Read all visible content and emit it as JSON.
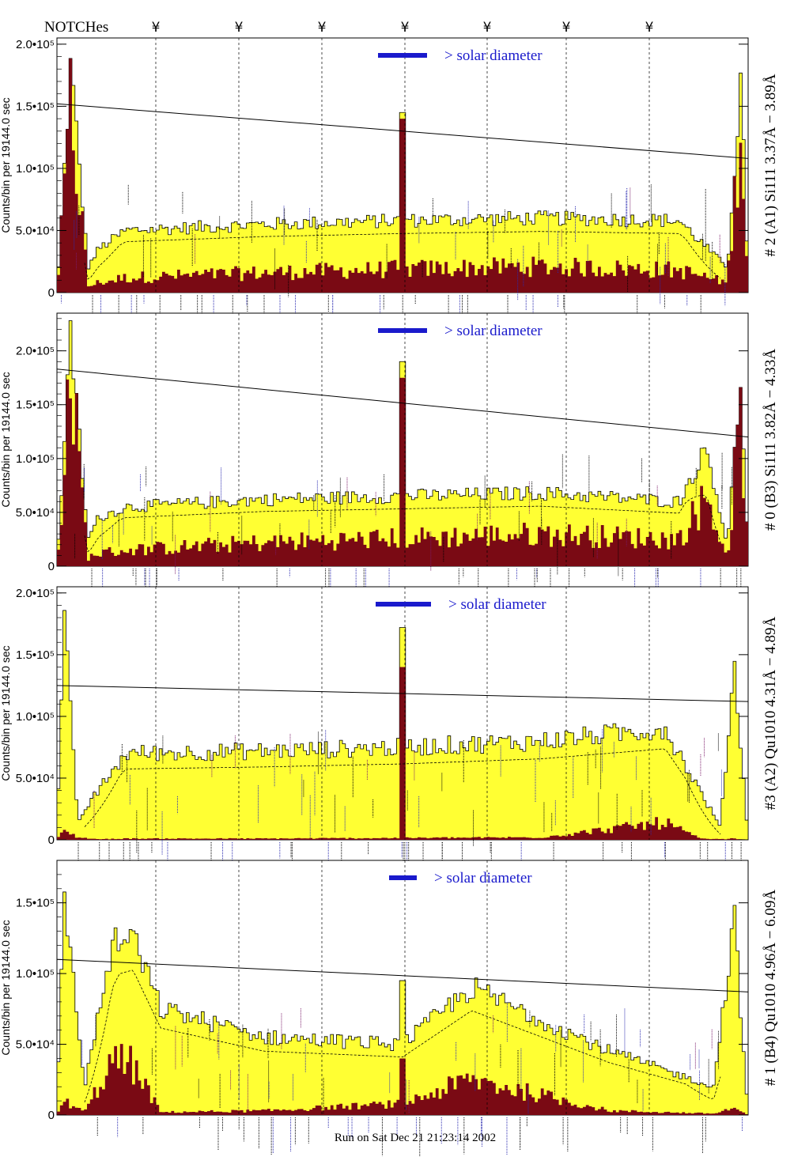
{
  "header": {
    "notch_label": "NOTCHes",
    "notch_symbol": "¥",
    "notch_positions": [
      0.13,
      0.27,
      0.41,
      0.555,
      0.695,
      0.835,
      0.975
    ]
  },
  "footer": {
    "run_text": "Run on Sat Dec 21 21:23:14 2002"
  },
  "colors": {
    "total_fill": "#ffff33",
    "component_fill": "#7a0a14",
    "legend_bar": "#1a1acc",
    "outline": "#000000"
  },
  "y_axis_title": "Counts/bin per  19144.0 sec",
  "chart_data": [
    {
      "type": "area",
      "title": "# 2 (A1) Si111  3.37Å − 3.89Å",
      "legend": "> solar diameter",
      "ylabel": "Counts/bin per  19144.0 sec",
      "ylim": [
        0,
        205000
      ],
      "yticks": [
        {
          "v": 0,
          "label": "0"
        },
        {
          "v": 50000,
          "label": "5.0•10⁴"
        },
        {
          "v": 100000,
          "label": "1.0•10⁵"
        },
        {
          "v": 150000,
          "label": "1.5•10⁵"
        },
        {
          "v": 200000,
          "label": "2.0•10⁵"
        }
      ],
      "x": [
        0,
        0.02,
        0.045,
        0.06,
        0.1,
        0.3,
        0.5,
        0.7,
        0.9,
        0.97,
        0.99,
        1
      ],
      "total": [
        0,
        185000,
        20000,
        35000,
        50000,
        55000,
        58000,
        60000,
        58000,
        20000,
        175000,
        0
      ],
      "component": [
        0,
        155000,
        5000,
        8000,
        12000,
        16000,
        19000,
        21000,
        18000,
        8000,
        150000,
        0
      ],
      "background_line": [
        152000,
        108000
      ],
      "spikes": [
        {
          "x": 0.5,
          "total": 145000,
          "component": 140000
        }
      ]
    },
    {
      "type": "area",
      "title": "# 0 (B3) Si111  3.82Å − 4.33Å",
      "legend": "> solar diameter",
      "ylabel": "Counts/bin per  19144.0 sec",
      "ylim": [
        0,
        235000
      ],
      "yticks": [
        {
          "v": 0,
          "label": "0"
        },
        {
          "v": 50000,
          "label": "5.0•10⁴"
        },
        {
          "v": 100000,
          "label": "1.0•10⁵"
        },
        {
          "v": 150000,
          "label": "1.5•10⁵"
        },
        {
          "v": 200000,
          "label": "2.0•10⁵"
        }
      ],
      "x": [
        0,
        0.02,
        0.045,
        0.06,
        0.1,
        0.3,
        0.5,
        0.7,
        0.9,
        0.94,
        0.97,
        0.99,
        1
      ],
      "total": [
        0,
        215000,
        25000,
        45000,
        55000,
        62000,
        65000,
        68000,
        60000,
        110000,
        20000,
        180000,
        0
      ],
      "component": [
        0,
        185000,
        8000,
        12000,
        15000,
        22000,
        26000,
        30000,
        25000,
        65000,
        8000,
        155000,
        0
      ],
      "background_line": [
        183000,
        120000
      ],
      "spikes": [
        {
          "x": 0.5,
          "total": 190000,
          "component": 175000
        }
      ]
    },
    {
      "type": "area",
      "title": "#3 (A2) Qu1010  4.31Å − 4.89Å",
      "legend": "> solar diameter",
      "ylabel": "Counts/bin per  19144.0 sec",
      "ylim": [
        0,
        205000
      ],
      "yticks": [
        {
          "v": 0,
          "label": "0"
        },
        {
          "v": 50000,
          "label": "5.0•10⁴"
        },
        {
          "v": 100000,
          "label": "1.0•10⁵"
        },
        {
          "v": 150000,
          "label": "1.5•10⁵"
        },
        {
          "v": 200000,
          "label": "2.0•10⁵"
        }
      ],
      "x": [
        0,
        0.01,
        0.03,
        0.06,
        0.1,
        0.3,
        0.5,
        0.7,
        0.88,
        0.93,
        0.96,
        0.98,
        1
      ],
      "total": [
        0,
        185000,
        15000,
        40000,
        70000,
        72000,
        75000,
        80000,
        90000,
        40000,
        10000,
        145000,
        0
      ],
      "component": [
        0,
        8000,
        2000,
        500,
        1000,
        1000,
        1500,
        2000,
        14000,
        1000,
        500,
        1000,
        0
      ],
      "background_line": [
        125000,
        112000
      ],
      "spikes": [
        {
          "x": 0.5,
          "total": 172000,
          "component": 140000
        }
      ]
    },
    {
      "type": "area",
      "title": "# 1 (B4) Qu1010 4.96Å − 6.09Å",
      "legend": "> solar diameter",
      "ylabel": "Counts/bin per  19144.0 sec",
      "ylim": [
        0,
        180000
      ],
      "yticks": [
        {
          "v": 0,
          "label": "0"
        },
        {
          "v": 50000,
          "label": "5.0•10⁴"
        },
        {
          "v": 100000,
          "label": "1.0•10⁵"
        },
        {
          "v": 150000,
          "label": "1.5•10⁵"
        }
      ],
      "x": [
        0,
        0.01,
        0.04,
        0.08,
        0.11,
        0.15,
        0.3,
        0.5,
        0.6,
        0.8,
        0.95,
        0.98,
        1
      ],
      "total": [
        0,
        160000,
        20000,
        120000,
        125000,
        75000,
        55000,
        50000,
        90000,
        45000,
        20000,
        140000,
        0
      ],
      "component": [
        0,
        10000,
        2000,
        38000,
        35000,
        2000,
        3000,
        8000,
        25000,
        3000,
        1000,
        5000,
        0
      ],
      "background_line": [
        110000,
        87000
      ],
      "spikes": [
        {
          "x": 0.5,
          "total": 95000,
          "component": 40000
        }
      ]
    }
  ]
}
